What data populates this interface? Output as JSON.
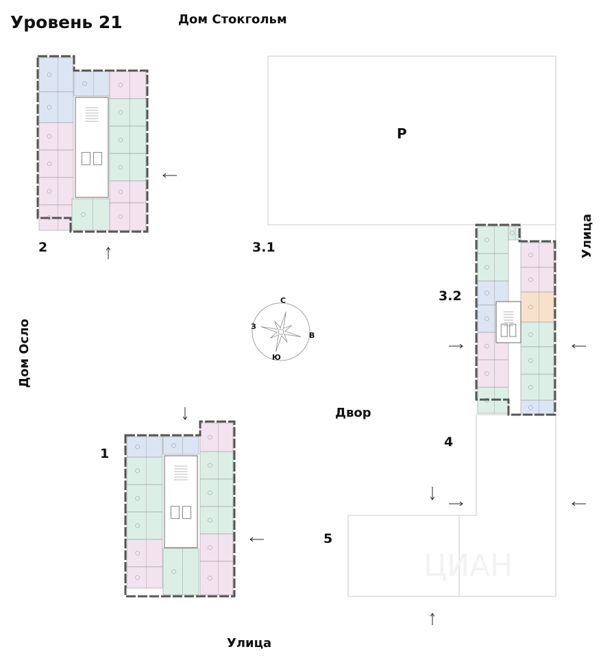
{
  "header": {
    "level_title": "Уровень 21",
    "north_neighbor": "Дом Стокгольм"
  },
  "labels": {
    "west_neighbor": "Дом Осло",
    "street_east": "Улица",
    "street_south": "Улица",
    "courtyard": "Двор",
    "parking": "P"
  },
  "sections": [
    {
      "id": "1"
    },
    {
      "id": "2"
    },
    {
      "id": "3.1"
    },
    {
      "id": "3.2"
    },
    {
      "id": "4"
    },
    {
      "id": "5"
    }
  ],
  "compass": {
    "north": "С",
    "east": "В",
    "south": "Ю",
    "west": "З"
  },
  "watermark": "ЦИАН",
  "colors": {
    "studio": "#dce5f3",
    "one_room": "#f3e3ef",
    "two_room": "#dcefe7",
    "three_room": "#f8e1cb",
    "wall": "#555555",
    "outline": "#c8c8c8"
  }
}
